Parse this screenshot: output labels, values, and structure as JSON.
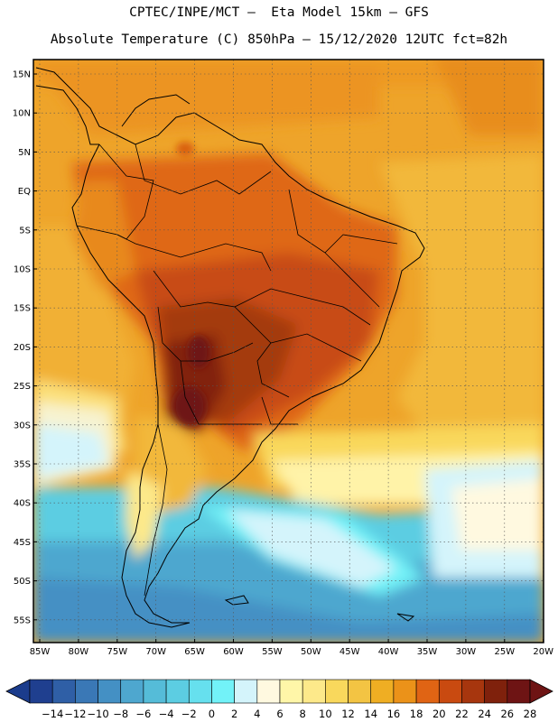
{
  "header": {
    "line1": "CPTEC/INPE/MCT —  Eta Model 15km — GFS",
    "line2": "Absolute Temperature (C) 850hPa — 15/12/2020 12UTC fct=82h"
  },
  "map": {
    "lat_labels": [
      "15N",
      "10N",
      "5N",
      "EQ",
      "5S",
      "10S",
      "15S",
      "20S",
      "25S",
      "30S",
      "35S",
      "40S",
      "45S",
      "50S",
      "55S"
    ],
    "lon_labels": [
      "85W",
      "80W",
      "75W",
      "70W",
      "65W",
      "60W",
      "55W",
      "50W",
      "45W",
      "40W",
      "35W",
      "30W",
      "25W",
      "20W"
    ],
    "variable": "Absolute Temperature (C) 850hPa"
  },
  "colorbar": {
    "labels": [
      "-14",
      "-12",
      "-10",
      "-8",
      "-6",
      "-4",
      "-2",
      "0",
      "2",
      "4",
      "6",
      "8",
      "10",
      "12",
      "14",
      "16",
      "18",
      "20",
      "22",
      "24",
      "26",
      "28"
    ],
    "colors": [
      "#1f3f8f",
      "#2f5fa6",
      "#3a78b6",
      "#4490c4",
      "#4ea7cf",
      "#55bcd8",
      "#5ccde2",
      "#66e0ee",
      "#72f2f8",
      "#d4f4fb",
      "#fff9e0",
      "#fff6a8",
      "#fde98a",
      "#f9d85c",
      "#f3c443",
      "#efae23",
      "#eb9219",
      "#e06414",
      "#c94a10",
      "#a7360e",
      "#7f210c",
      "#6e1414"
    ],
    "low_color": "#1b3c8c",
    "high_color": "#6e1414"
  }
}
